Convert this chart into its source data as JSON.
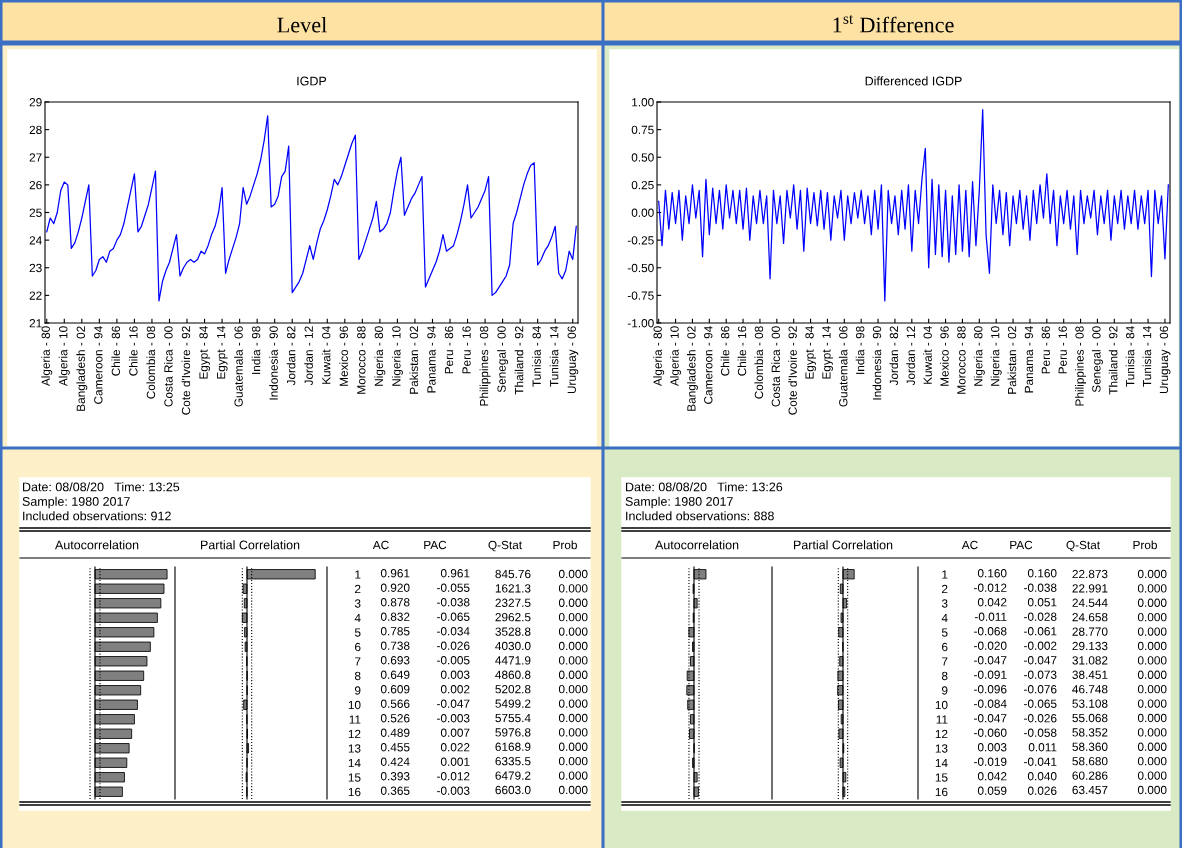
{
  "chart_data": [
    {
      "type": "other",
      "annotations": [
        "Level",
        "1$^{st}$ Difference"
      ]
    },
    {
      "type": "line",
      "title": "IGDP",
      "categories": [
        "Algeria - 80",
        null,
        null,
        null,
        null,
        "Algeria - 10",
        null,
        null,
        null,
        null,
        "Bangladesh - 02",
        null,
        null,
        null,
        null,
        "Cameroon - 94",
        null,
        null,
        null,
        null,
        "Chile - 86",
        null,
        null,
        null,
        null,
        "Chile - 16",
        null,
        null,
        null,
        null,
        "Colombia - 08",
        null,
        null,
        null,
        null,
        "Costa Rica - 00",
        null,
        null,
        null,
        null,
        "Cote d'Ivoire - 92",
        null,
        null,
        null,
        null,
        "Egypt - 84",
        null,
        null,
        null,
        null,
        "Egypt - 14",
        null,
        null,
        null,
        null,
        "Guatemala - 06",
        null,
        null,
        null,
        null,
        "India - 98",
        null,
        null,
        null,
        null,
        "Indonesia - 90",
        null,
        null,
        null,
        null,
        "Jordan - 82",
        null,
        null,
        null,
        null,
        "Jordan - 12",
        null,
        null,
        null,
        null,
        "Kuwait - 04",
        null,
        null,
        null,
        null,
        "Mexico - 96",
        null,
        null,
        null,
        null,
        "Morocco - 88",
        null,
        null,
        null,
        null,
        "Nigeria - 80",
        null,
        null,
        null,
        null,
        "Nigeria - 10",
        null,
        null,
        null,
        null,
        "Pakistan - 02",
        null,
        null,
        null,
        null,
        "Panama - 94",
        null,
        null,
        null,
        null,
        "Peru - 86",
        null,
        null,
        null,
        null,
        "Peru - 16",
        null,
        null,
        null,
        null,
        "Philippines - 08",
        null,
        null,
        null,
        null,
        "Senegal - 00",
        null,
        null,
        null,
        null,
        "Thailand - 92",
        null,
        null,
        null,
        null,
        "Tunisia - 84",
        null,
        null,
        null,
        null,
        "Tunisia - 14",
        null,
        null,
        null,
        null,
        "Uruguay - 06",
        null
      ],
      "series": [
        {
          "color": "#0000ff",
          "values": [
            24.3,
            24.8,
            24.6,
            25.0,
            25.8,
            26.1,
            26.0,
            23.7,
            23.9,
            24.3,
            24.8,
            25.4,
            26.0,
            22.7,
            22.9,
            23.3,
            23.4,
            23.2,
            23.6,
            23.7,
            24.0,
            24.2,
            24.6,
            25.2,
            25.8,
            26.4,
            24.3,
            24.5,
            24.9,
            25.3,
            25.9,
            26.5,
            21.8,
            22.5,
            22.9,
            23.2,
            23.7,
            24.2,
            22.7,
            23.0,
            23.2,
            23.3,
            23.2,
            23.3,
            23.6,
            23.5,
            23.8,
            24.2,
            24.5,
            25.0,
            25.9,
            22.8,
            23.3,
            23.7,
            24.1,
            24.6,
            25.9,
            25.3,
            25.6,
            26.0,
            26.4,
            26.9,
            27.6,
            28.5,
            25.2,
            25.3,
            25.6,
            26.3,
            26.5,
            27.4,
            22.1,
            22.3,
            22.5,
            22.8,
            23.3,
            23.8,
            23.3,
            23.9,
            24.4,
            24.7,
            25.1,
            25.6,
            26.2,
            26.0,
            26.3,
            26.7,
            27.1,
            27.5,
            27.8,
            23.3,
            23.6,
            24.0,
            24.4,
            24.8,
            25.4,
            24.3,
            24.4,
            24.6,
            25.0,
            25.8,
            26.5,
            27.0,
            24.9,
            25.2,
            25.5,
            25.7,
            26.0,
            26.3,
            22.3,
            22.6,
            22.9,
            23.2,
            23.6,
            24.2,
            23.6,
            23.7,
            23.8,
            24.2,
            24.7,
            25.3,
            26.0,
            24.8,
            25.0,
            25.2,
            25.5,
            25.8,
            26.3,
            22.0,
            22.1,
            22.3,
            22.5,
            22.7,
            23.1,
            24.6,
            25.0,
            25.5,
            26.0,
            26.4,
            26.7,
            26.8,
            23.1,
            23.3,
            23.6,
            23.8,
            24.1,
            24.5,
            22.8,
            22.6,
            22.9,
            23.6,
            23.3,
            24.5
          ]
        }
      ],
      "ylim": [
        21,
        29
      ],
      "yticks": [
        21,
        22,
        23,
        24,
        25,
        26,
        27,
        28,
        29
      ]
    },
    {
      "type": "line",
      "title": "Differenced IGDP",
      "categories": [
        "Algeria - 80",
        null,
        null,
        null,
        null,
        "Algeria - 10",
        null,
        null,
        null,
        null,
        "Bangladesh - 02",
        null,
        null,
        null,
        null,
        "Cameroon - 94",
        null,
        null,
        null,
        null,
        "Chile - 86",
        null,
        null,
        null,
        null,
        "Chile - 16",
        null,
        null,
        null,
        null,
        "Colombia - 08",
        null,
        null,
        null,
        null,
        "Costa Rica - 00",
        null,
        null,
        null,
        null,
        "Cote d'Ivoire - 92",
        null,
        null,
        null,
        null,
        "Egypt - 84",
        null,
        null,
        null,
        null,
        "Egypt - 14",
        null,
        null,
        null,
        null,
        "Guatemala - 06",
        null,
        null,
        null,
        null,
        "India - 98",
        null,
        null,
        null,
        null,
        "Indonesia - 90",
        null,
        null,
        null,
        null,
        "Jordan - 82",
        null,
        null,
        null,
        null,
        "Jordan - 12",
        null,
        null,
        null,
        null,
        "Kuwait - 04",
        null,
        null,
        null,
        null,
        "Mexico - 96",
        null,
        null,
        null,
        null,
        "Morocco - 88",
        null,
        null,
        null,
        null,
        "Nigeria - 80",
        null,
        null,
        null,
        null,
        "Nigeria - 10",
        null,
        null,
        null,
        null,
        "Pakistan - 02",
        null,
        null,
        null,
        null,
        "Panama - 94",
        null,
        null,
        null,
        null,
        "Peru - 86",
        null,
        null,
        null,
        null,
        "Peru - 16",
        null,
        null,
        null,
        null,
        "Philippines - 08",
        null,
        null,
        null,
        null,
        "Senegal - 00",
        null,
        null,
        null,
        null,
        "Thailand - 92",
        null,
        null,
        null,
        null,
        "Tunisia - 84",
        null,
        null,
        null,
        null,
        "Tunisia - 14",
        null,
        null,
        null,
        null,
        "Uruguay - 06",
        null
      ],
      "series": [
        {
          "color": "#0000ff",
          "values": [
            0.1,
            -0.3,
            0.2,
            -0.15,
            0.18,
            -0.1,
            0.2,
            -0.25,
            0.15,
            -0.1,
            0.25,
            -0.05,
            0.2,
            -0.4,
            0.3,
            -0.2,
            0.22,
            -0.1,
            0.2,
            -0.15,
            0.25,
            -0.05,
            0.2,
            -0.1,
            0.2,
            -0.15,
            0.22,
            -0.25,
            0.15,
            -0.1,
            0.2,
            -0.1,
            0.15,
            -0.6,
            0.2,
            -0.1,
            0.15,
            -0.28,
            0.2,
            -0.05,
            0.25,
            -0.15,
            0.2,
            -0.35,
            0.22,
            -0.1,
            0.18,
            -0.12,
            0.2,
            -0.15,
            0.18,
            -0.25,
            0.15,
            -0.05,
            0.2,
            -0.25,
            0.15,
            -0.1,
            0.18,
            -0.05,
            0.2,
            -0.1,
            0.15,
            -0.2,
            0.2,
            -0.15,
            0.25,
            -0.8,
            0.2,
            -0.1,
            0.15,
            -0.2,
            0.2,
            -0.15,
            0.25,
            -0.35,
            0.2,
            -0.1,
            0.3,
            0.58,
            -0.5,
            0.3,
            -0.38,
            0.25,
            -0.4,
            0.2,
            -0.45,
            0.15,
            -0.38,
            0.25,
            -0.35,
            0.2,
            -0.4,
            0.28,
            -0.3,
            0.2,
            0.93,
            -0.2,
            -0.55,
            0.25,
            -0.1,
            0.2,
            -0.2,
            0.18,
            -0.3,
            0.15,
            -0.1,
            0.2,
            -0.15,
            0.15,
            -0.25,
            0.2,
            -0.1,
            0.25,
            -0.05,
            0.35,
            -0.1,
            0.2,
            -0.3,
            0.15,
            -0.1,
            0.2,
            -0.15,
            0.15,
            -0.38,
            0.2,
            -0.1,
            0.15,
            -0.05,
            0.2,
            -0.2,
            0.15,
            -0.1,
            0.2,
            -0.25,
            0.15,
            -0.1,
            0.2,
            -0.15,
            0.15,
            -0.1,
            0.2,
            -0.15,
            0.15,
            -0.1,
            0.2,
            -0.58,
            0.2,
            -0.1,
            0.15,
            -0.42,
            0.25
          ]
        }
      ],
      "ylim": [
        -1,
        1
      ],
      "yticks": [
        {
          "value": -1,
          "label": "-1.00"
        },
        {
          "value": -0.75,
          "label": "-0.75"
        },
        {
          "value": -0.5,
          "label": "-0.50"
        },
        {
          "value": -0.25,
          "label": "-0.25"
        },
        {
          "value": 0,
          "label": "0.00"
        },
        {
          "value": 0.25,
          "label": "0.25"
        },
        {
          "value": 0.5,
          "label": "0.50"
        },
        {
          "value": 0.75,
          "label": "0.75"
        },
        {
          "value": 1,
          "label": "1.00"
        }
      ]
    },
    {
      "type": "other",
      "annotations": [
        "Date: 08/08/20   Time: 13:25",
        "Sample: 1980 2017",
        "Included observations: 912",
        "Q-Stat",
        "845.76",
        "1621.3",
        "2327.5",
        "2962.5",
        "3528.8",
        "4030.0",
        "4471.9",
        "4860.8",
        "5202.8",
        "5499.2",
        "5755.4",
        "5976.8",
        "6168.9",
        "6335.5",
        "6479.2",
        "6603.0",
        "Prob",
        "0.000",
        "0.000",
        "0.000",
        "0.000",
        "0.000",
        "0.000",
        "0.000",
        "0.000",
        "0.000",
        "0.000",
        "0.000",
        "0.000",
        "0.000",
        "0.000",
        "0.000",
        "0.000"
      ]
    },
    {
      "type": "bar",
      "orientation": "horizontal",
      "title": "Autocorrelation",
      "categories": [
        null,
        null,
        null,
        null,
        null,
        null,
        null,
        null,
        null,
        null,
        null,
        null,
        null,
        null,
        null,
        null
      ],
      "tick_labels": false,
      "ref_lines": [
        {
          "axis": "x",
          "value": -0.066,
          "line_style": "dotted"
        },
        {
          "axis": "x",
          "value": 0.066,
          "line_style": "dotted"
        }
      ],
      "series": [
        {
          "name": "AC",
          "color": "#808080",
          "values": [
            0.961,
            0.92,
            0.878,
            0.832,
            0.785,
            0.738,
            0.693,
            0.649,
            0.609,
            0.566,
            0.526,
            0.489,
            0.455,
            0.424,
            0.393,
            0.365
          ],
          "value_labels": [
            "0.961",
            "0.920",
            "0.878",
            "0.832",
            "0.785",
            "0.738",
            "0.693",
            "0.649",
            "0.609",
            "0.566",
            "0.526",
            "0.489",
            "0.455",
            "0.424",
            "0.393",
            "0.365"
          ]
        }
      ]
    },
    {
      "type": "bar",
      "orientation": "horizontal",
      "title": "Partial Correlation",
      "categories": [
        "1",
        "2",
        "3",
        "4",
        "5",
        "6",
        "7",
        "8",
        "9",
        "10",
        "11",
        "12",
        "13",
        "14",
        "15",
        "16"
      ],
      "tick_labels": "y",
      "ref_lines": [
        {
          "axis": "x",
          "value": -0.066,
          "line_style": "dotted"
        },
        {
          "axis": "x",
          "value": 0.066,
          "line_style": "dotted"
        }
      ],
      "series": [
        {
          "name": "PAC",
          "color": "#808080",
          "values": [
            0.961,
            -0.055,
            -0.038,
            -0.065,
            -0.034,
            -0.026,
            -0.005,
            0.003,
            0.002,
            -0.047,
            -0.003,
            0.007,
            0.022,
            0.001,
            -0.012,
            -0.003
          ],
          "value_labels": [
            "0.961",
            "-0.055",
            "-0.038",
            "-0.065",
            "-0.034",
            "-0.026",
            "-0.005",
            "0.003",
            "0.002",
            "-0.047",
            "-0.003",
            "0.007",
            "0.022",
            "0.001",
            "-0.012",
            "-0.003"
          ]
        }
      ]
    },
    {
      "type": "other",
      "annotations": [
        "Date: 08/08/20   Time: 13:26",
        "Sample: 1980 2017",
        "Included observations: 888",
        "Q-Stat",
        "22.873",
        "22.991",
        "24.544",
        "24.658",
        "28.770",
        "29.133",
        "31.082",
        "38.451",
        "46.748",
        "53.108",
        "55.068",
        "58.352",
        "58.360",
        "58.680",
        "60.286",
        "63.457",
        "Prob",
        "0.000",
        "0.000",
        "0.000",
        "0.000",
        "0.000",
        "0.000",
        "0.000",
        "0.000",
        "0.000",
        "0.000",
        "0.000",
        "0.000",
        "0.000",
        "0.000",
        "0.000",
        "0.000"
      ]
    },
    {
      "type": "bar",
      "orientation": "horizontal",
      "title": "Autocorrelation",
      "categories": [
        null,
        null,
        null,
        null,
        null,
        null,
        null,
        null,
        null,
        null,
        null,
        null,
        null,
        null,
        null,
        null
      ],
      "tick_labels": false,
      "ref_lines": [
        {
          "axis": "x",
          "value": -0.067,
          "line_style": "dotted"
        },
        {
          "axis": "x",
          "value": 0.067,
          "line_style": "dotted"
        }
      ],
      "series": [
        {
          "name": "AC",
          "color": "#808080",
          "values": [
            0.16,
            -0.012,
            0.042,
            -0.011,
            -0.068,
            -0.02,
            -0.047,
            -0.091,
            -0.096,
            -0.084,
            -0.047,
            -0.06,
            0.003,
            -0.019,
            0.042,
            0.059
          ],
          "value_labels": [
            "0.160",
            "-0.012",
            "0.042",
            "-0.011",
            "-0.068",
            "-0.020",
            "-0.047",
            "-0.091",
            "-0.096",
            "-0.084",
            "-0.047",
            "-0.060",
            "0.003",
            "-0.019",
            "0.042",
            "0.059"
          ]
        }
      ]
    },
    {
      "type": "bar",
      "orientation": "horizontal",
      "title": "Partial Correlation",
      "categories": [
        "1",
        "2",
        "3",
        "4",
        "5",
        "6",
        "7",
        "8",
        "9",
        "10",
        "11",
        "12",
        "13",
        "14",
        "15",
        "16"
      ],
      "tick_labels": "y",
      "ref_lines": [
        {
          "axis": "x",
          "value": -0.067,
          "line_style": "dotted"
        },
        {
          "axis": "x",
          "value": 0.067,
          "line_style": "dotted"
        }
      ],
      "series": [
        {
          "name": "PAC",
          "color": "#808080",
          "values": [
            0.16,
            -0.038,
            0.051,
            -0.028,
            -0.061,
            -0.002,
            -0.047,
            -0.073,
            -0.076,
            -0.065,
            -0.026,
            -0.058,
            0.011,
            -0.041,
            0.04,
            0.026
          ],
          "value_labels": [
            "0.160",
            "-0.038",
            "0.051",
            "-0.028",
            "-0.061",
            "-0.002",
            "-0.047",
            "-0.073",
            "-0.076",
            "-0.065",
            "-0.026",
            "-0.058",
            "0.011",
            "-0.041",
            "0.040",
            "0.026"
          ]
        }
      ]
    }
  ]
}
